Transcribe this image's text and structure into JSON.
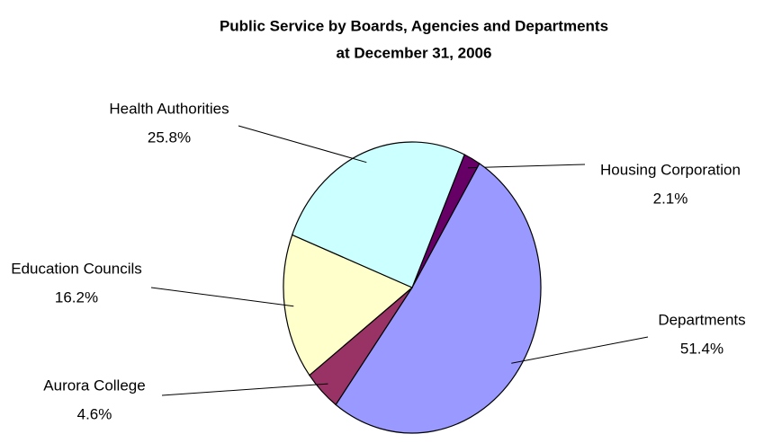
{
  "chart_data": {
    "type": "pie",
    "title": [
      "Public Service by Boards, Agencies and Departments",
      "at December 31, 2006"
    ],
    "categories": [
      "Housing Corporation",
      "Departments",
      "Aurora College",
      "Education Councils",
      "Health Authorities"
    ],
    "values": [
      2.1,
      51.4,
      4.6,
      16.2,
      25.8
    ],
    "value_labels": [
      "2.1%",
      "51.4%",
      "4.6%",
      "16.2%",
      "25.8%"
    ],
    "colors": [
      "#660066",
      "#9999ff",
      "#993366",
      "#ffffcc",
      "#ccffff"
    ]
  }
}
